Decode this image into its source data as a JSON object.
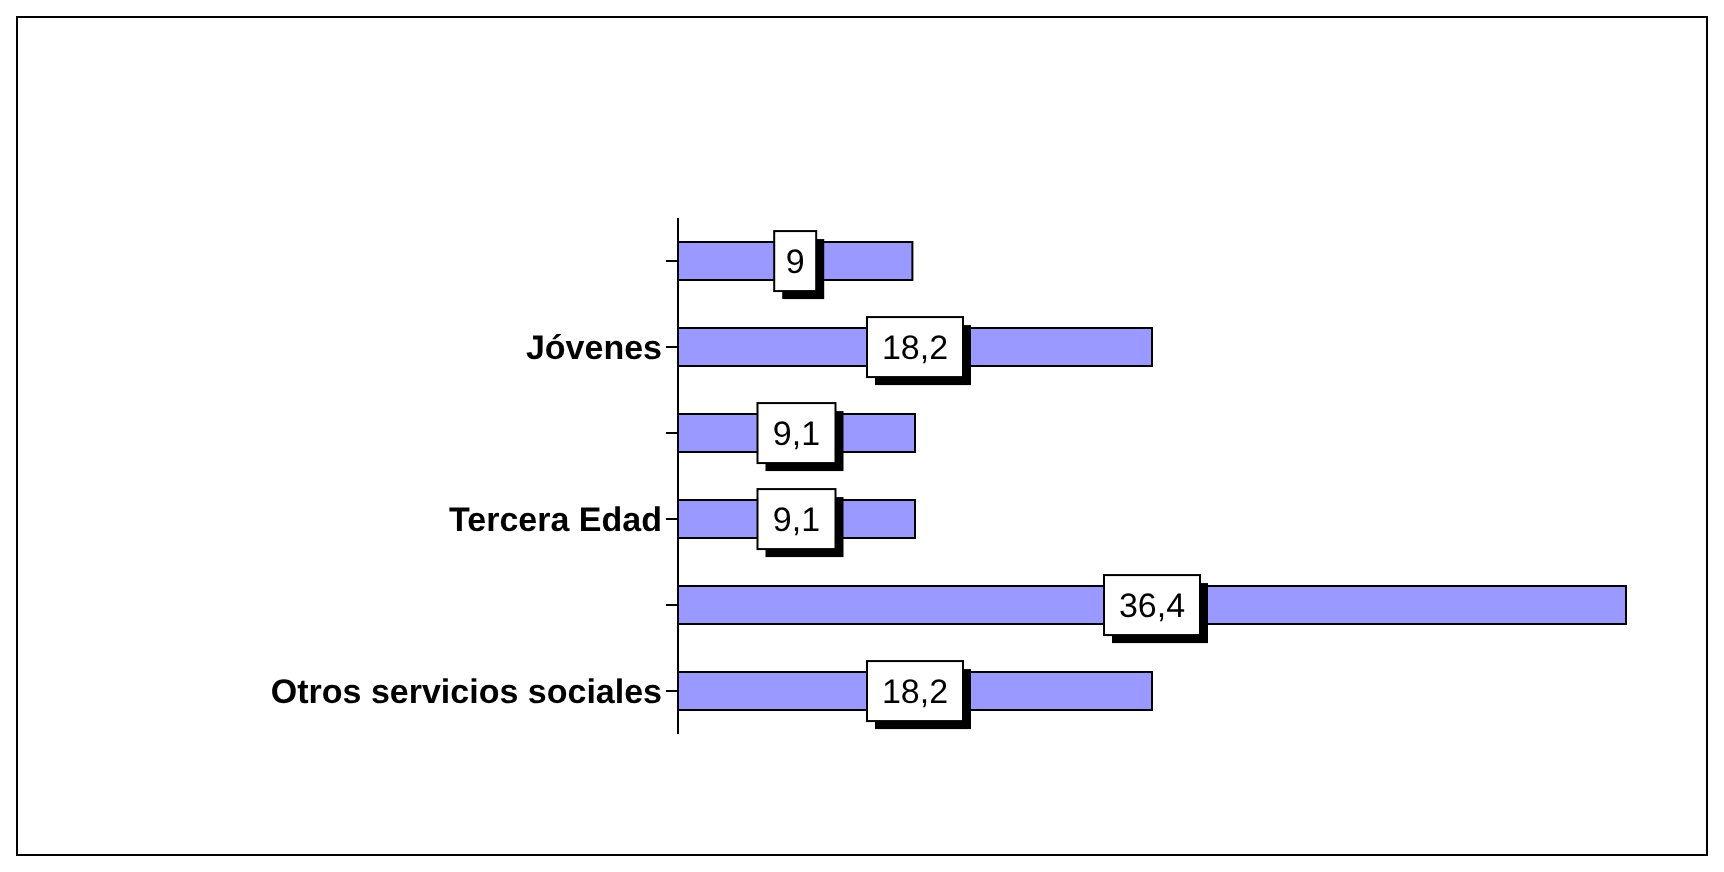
{
  "chart_data": {
    "type": "bar",
    "orientation": "horizontal",
    "categories": [
      null,
      "Jóvenes",
      null,
      "Tercera Edad",
      null,
      "Otros servicios sociales"
    ],
    "values": [
      9,
      18.2,
      9.1,
      9.1,
      36.4,
      18.2
    ],
    "value_labels": [
      "9",
      "18,2",
      "9,1",
      "9,1",
      "36,4",
      "18,2"
    ],
    "color": "#9999ff"
  }
}
